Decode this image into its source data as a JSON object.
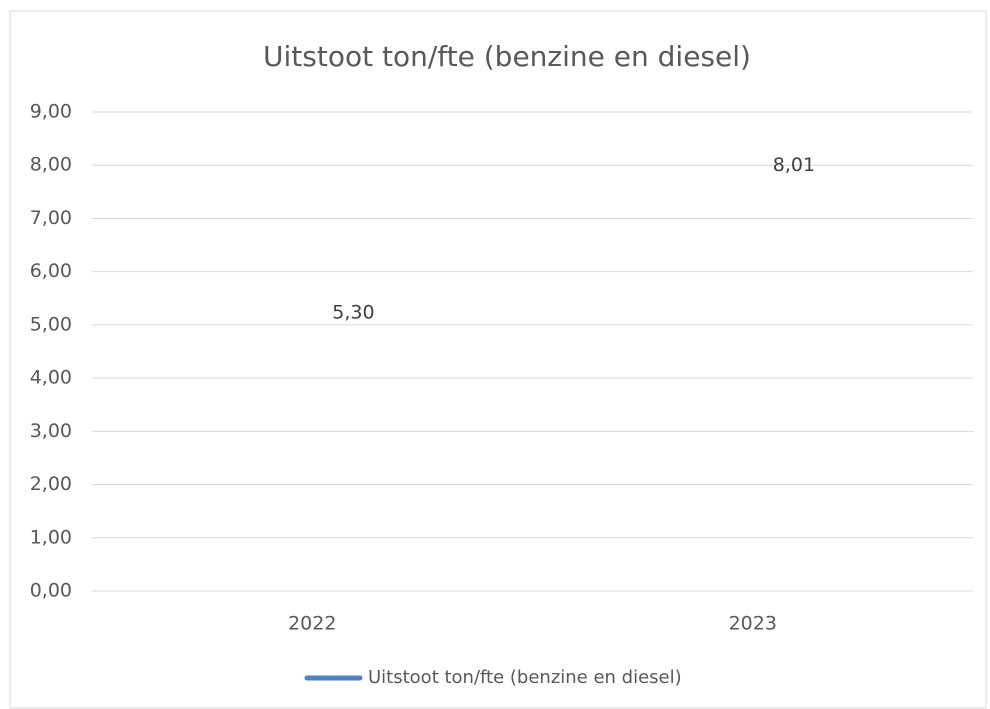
{
  "chart_data": {
    "type": "line",
    "title": "Uitstoot ton/fte (benzine en diesel)",
    "categories": [
      "2022",
      "2023"
    ],
    "series": [
      {
        "name": "Uitstoot ton/fte (benzine en diesel)",
        "color": "#4f81bd",
        "values": [
          5.3,
          8.01
        ],
        "value_labels": [
          "5,30",
          "8,01"
        ]
      }
    ],
    "ylim": [
      0,
      9
    ],
    "yticks": [
      {
        "value": 0,
        "label": "0,00"
      },
      {
        "value": 1,
        "label": "1,00"
      },
      {
        "value": 2,
        "label": "2,00"
      },
      {
        "value": 3,
        "label": "3,00"
      },
      {
        "value": 4,
        "label": "4,00"
      },
      {
        "value": 5,
        "label": "5,00"
      },
      {
        "value": 6,
        "label": "6,00"
      },
      {
        "value": 7,
        "label": "7,00"
      },
      {
        "value": 8,
        "label": "8,00"
      },
      {
        "value": 9,
        "label": "9,00"
      }
    ],
    "grid": true,
    "legend": "bottom"
  }
}
